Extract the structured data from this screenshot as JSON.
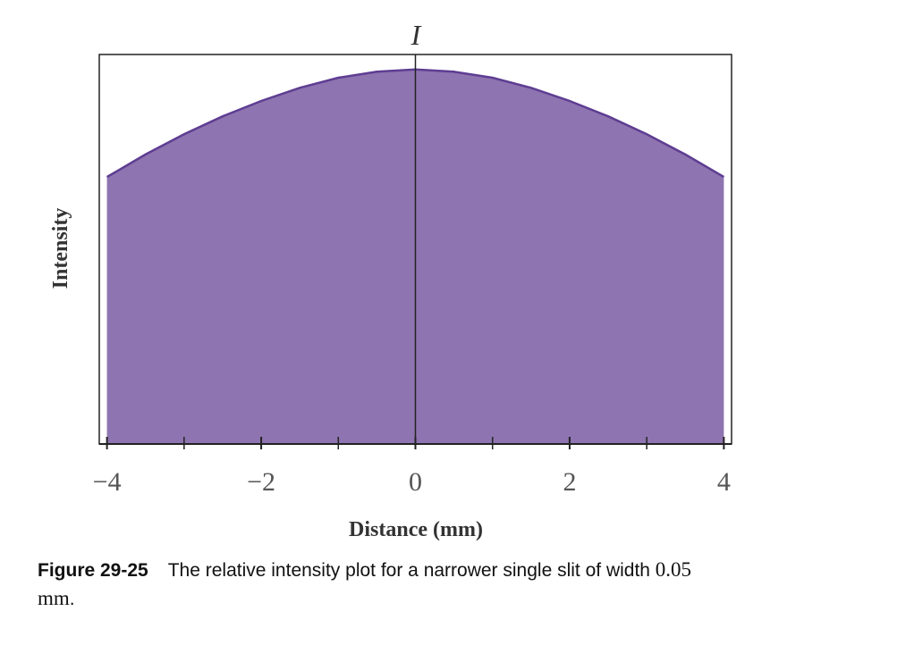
{
  "chart_data": {
    "type": "area",
    "title": "",
    "xlabel": "Distance (mm)",
    "ylabel": "Intensity",
    "top_label": "I",
    "xlim": [
      -4.1,
      4.1
    ],
    "ylim": [
      0,
      1.04
    ],
    "xticks_major": [
      -4,
      -2,
      0,
      2,
      4
    ],
    "xtick_labels": [
      "−4",
      "−2",
      "0",
      "2",
      "4"
    ],
    "xticks_minor": [
      -3,
      -1,
      1,
      3
    ],
    "x": [
      -4,
      -3.5,
      -3,
      -2.5,
      -2,
      -1.5,
      -1,
      -0.5,
      0,
      0.5,
      1,
      1.5,
      2,
      2.5,
      3,
      3.5,
      4
    ],
    "y": [
      0.713,
      0.773,
      0.827,
      0.875,
      0.916,
      0.951,
      0.978,
      0.994,
      1.0,
      0.994,
      0.978,
      0.951,
      0.916,
      0.875,
      0.827,
      0.773,
      0.713
    ],
    "grid": false,
    "colors": {
      "fill": "#8e74b0",
      "stroke": "#5e3d92",
      "axis": "#222222"
    }
  },
  "caption": {
    "figure_label": "Figure 29-25",
    "text_before": "The relative intensity plot for a narrower single slit of width ",
    "math_value": "0.05  mm",
    "text_after": "."
  }
}
